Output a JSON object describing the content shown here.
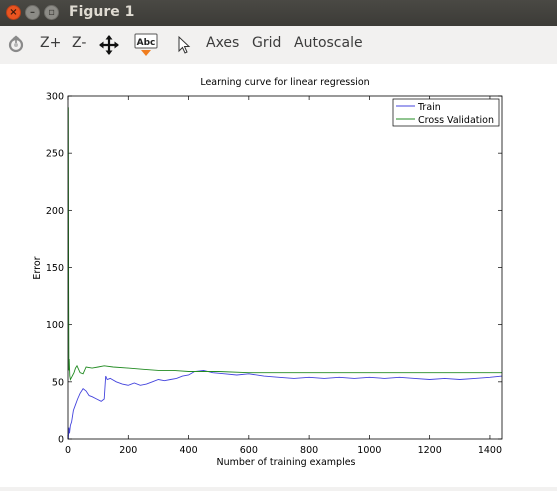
{
  "window": {
    "title": "Figure 1"
  },
  "toolbar": {
    "zoom_in": "Z+",
    "zoom_out": "Z-",
    "text_icon": "Abc",
    "axes": "Axes",
    "grid": "Grid",
    "autoscale": "Autoscale"
  },
  "chart_data": {
    "type": "line",
    "title": "Learning curve for linear regression",
    "xlabel": "Number of training examples",
    "ylabel": "Error",
    "xlim": [
      0,
      1440
    ],
    "ylim": [
      0,
      300
    ],
    "xticks": [
      0,
      200,
      400,
      600,
      800,
      1000,
      1200,
      1400
    ],
    "yticks": [
      0,
      50,
      100,
      150,
      200,
      250,
      300
    ],
    "grid": false,
    "legend": "top-right",
    "series": [
      {
        "name": "Train",
        "color": "#4444dd",
        "x": [
          1,
          3,
          5,
          8,
          12,
          18,
          25,
          32,
          40,
          50,
          60,
          70,
          80,
          95,
          110,
          120,
          125,
          130,
          140,
          160,
          180,
          200,
          220,
          240,
          260,
          280,
          300,
          320,
          340,
          360,
          380,
          400,
          420,
          450,
          480,
          520,
          560,
          600,
          650,
          700,
          750,
          800,
          850,
          900,
          950,
          1000,
          1050,
          1100,
          1150,
          1200,
          1250,
          1300,
          1350,
          1400,
          1440
        ],
        "y": [
          0,
          10,
          5,
          12,
          15,
          25,
          30,
          35,
          40,
          44,
          42,
          38,
          37,
          35,
          33,
          35,
          55,
          52,
          53,
          50,
          48,
          47,
          49,
          47,
          48,
          50,
          52,
          51,
          52,
          53,
          55,
          56,
          59,
          60,
          58,
          57,
          56,
          57,
          55,
          54,
          53,
          54,
          53,
          54,
          53,
          54,
          53,
          54,
          53,
          52,
          53,
          52,
          53,
          54,
          55
        ]
      },
      {
        "name": "Cross Validation",
        "color": "#228b22",
        "x": [
          1,
          2,
          3,
          4,
          6,
          8,
          12,
          16,
          20,
          25,
          30,
          40,
          50,
          60,
          80,
          100,
          120,
          150,
          200,
          250,
          300,
          350,
          400,
          450,
          500,
          600,
          700,
          800,
          900,
          1000,
          1100,
          1200,
          1300,
          1400,
          1440
        ],
        "y": [
          290,
          130,
          60,
          70,
          55,
          52,
          54,
          56,
          58,
          62,
          64,
          58,
          57,
          63,
          62,
          63,
          64,
          63,
          62,
          61,
          60,
          60,
          59,
          59,
          59,
          58,
          58,
          58,
          58,
          58,
          58,
          58,
          58,
          58,
          58
        ]
      }
    ]
  }
}
